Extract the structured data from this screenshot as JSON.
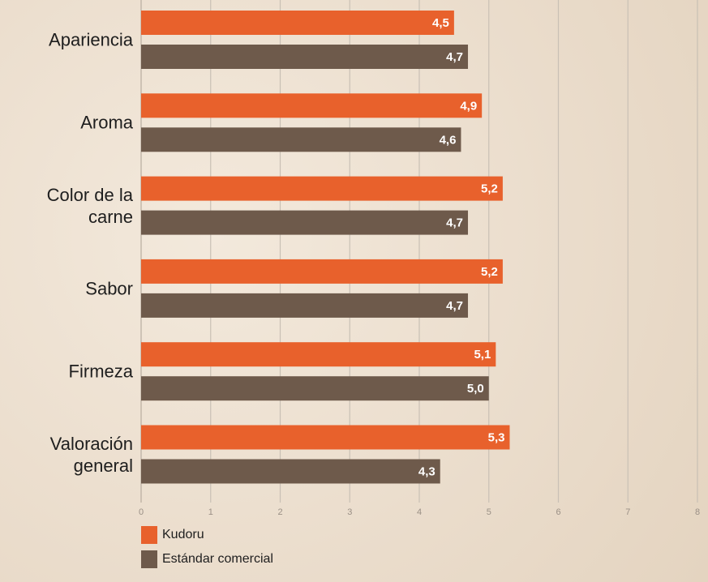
{
  "chart_data": {
    "type": "bar",
    "orientation": "horizontal",
    "categories": [
      "Apariencia",
      "Aroma",
      "Color de la carne",
      "Sabor",
      "Firmeza",
      "Valoración general"
    ],
    "series": [
      {
        "name": "Kudoru",
        "color": "#e8612c",
        "values": [
          4.5,
          4.9,
          5.2,
          5.2,
          5.1,
          5.3
        ],
        "value_labels": [
          "4,5",
          "4,9",
          "5,2",
          "5,2",
          "5,1",
          "5,3"
        ]
      },
      {
        "name": "Estándar comercial",
        "color": "#6e5a4b",
        "values": [
          4.7,
          4.6,
          4.7,
          4.7,
          5.0,
          4.3
        ],
        "value_labels": [
          "4,7",
          "4,6",
          "4,7",
          "4,7",
          "5,0",
          "4,3"
        ]
      }
    ],
    "xlim": [
      0,
      8
    ],
    "xticks": [
      0,
      1,
      2,
      3,
      4,
      5,
      6,
      7,
      8
    ],
    "grid": true,
    "legend": "bottom"
  }
}
